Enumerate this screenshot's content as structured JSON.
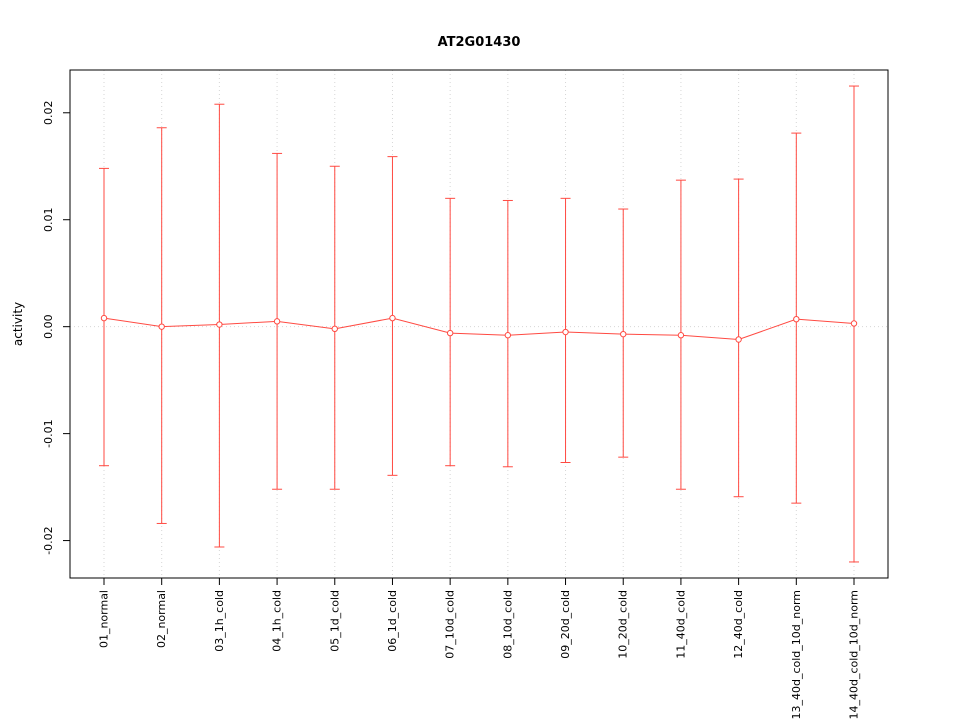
{
  "page": {
    "background": "#ffffff"
  },
  "chart_data": {
    "type": "scatter",
    "title": "AT2G01430",
    "xlabel": "",
    "ylabel": "activity",
    "ylim": [
      -0.0235,
      0.024
    ],
    "yticks": [
      {
        "value": -0.02,
        "label": "-0.02"
      },
      {
        "value": -0.01,
        "label": "-0.01"
      },
      {
        "value": 0,
        "label": "0.00"
      },
      {
        "value": 0.01,
        "label": "0.01"
      },
      {
        "value": 0.02,
        "label": "0.02"
      }
    ],
    "categories": [
      "01_normal",
      "02_normal",
      "03_1h_cold",
      "04_1h_cold",
      "05_1d_cold",
      "06_1d_cold",
      "07_10d_cold",
      "08_10d_cold",
      "09_20d_cold",
      "10_20d_cold",
      "11_40d_cold",
      "12_40d_cold",
      "13_40d_cold_10d_norm",
      "14_40d_cold_10d_norm"
    ],
    "series": [
      {
        "name": "activity",
        "color": "#ff4a42",
        "marker": "open-circle",
        "center": [
          0.0008,
          0.0,
          0.0002,
          0.0005,
          -0.0002,
          0.0008,
          -0.0006,
          -0.0008,
          -0.0005,
          -0.0007,
          -0.0008,
          -0.0012,
          0.0007,
          0.0003
        ],
        "upper": [
          0.0148,
          0.0186,
          0.0208,
          0.0162,
          0.015,
          0.0159,
          0.012,
          0.0118,
          0.012,
          0.011,
          0.0137,
          0.0138,
          0.0181,
          0.0225
        ],
        "lower": [
          -0.013,
          -0.0184,
          -0.0206,
          -0.0152,
          -0.0152,
          -0.0139,
          -0.013,
          -0.0131,
          -0.0127,
          -0.0122,
          -0.0152,
          -0.0159,
          -0.0165,
          -0.022
        ]
      }
    ],
    "grid": {
      "vertical": "dotted",
      "zero_line": "dotted",
      "color": "#d6d6d6"
    },
    "axis_color": "#000000",
    "legend": "none"
  }
}
